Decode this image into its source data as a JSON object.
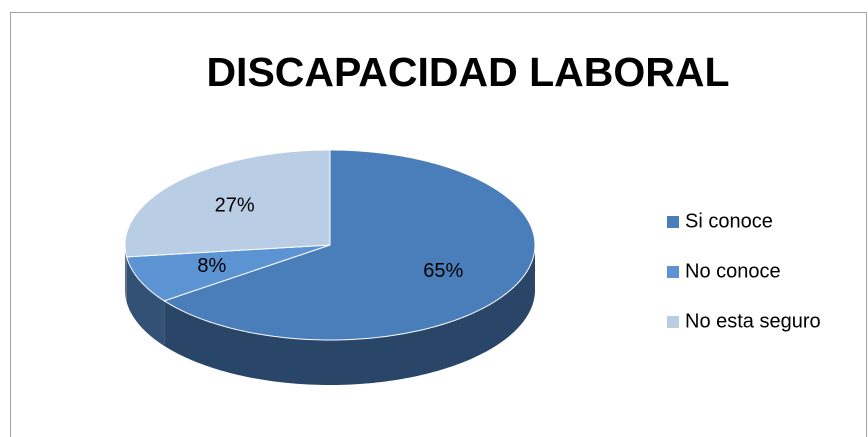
{
  "chart_data": {
    "type": "pie",
    "title": "DISCAPACIDAD LABORAL",
    "categories": [
      "Si conoce",
      "No conoce",
      "No esta seguro"
    ],
    "values": [
      65,
      8,
      27
    ],
    "value_labels": [
      "65%",
      "8%",
      "27%"
    ],
    "colors": [
      "#4a7ebb",
      "#5b93d3",
      "#b9cde5"
    ],
    "legend": "right"
  }
}
